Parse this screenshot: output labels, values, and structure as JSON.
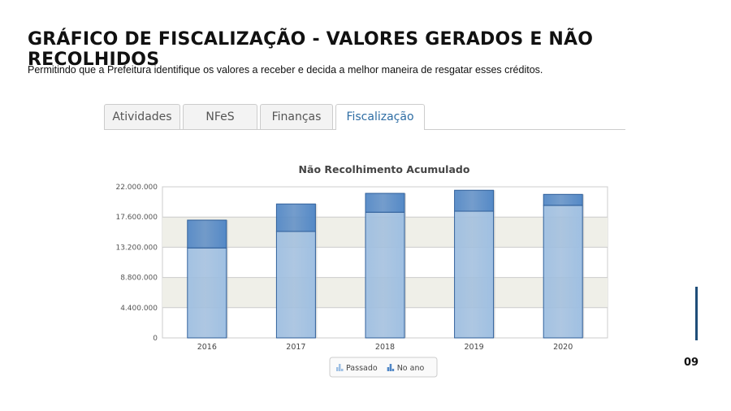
{
  "header": {
    "title": "GRÁFICO DE FISCALIZAÇÃO - VALORES GERADOS E NÃO RECOLHIDOS",
    "subtitle": "Permitindo que a Prefeitura identifique os valores a receber e decida a melhor maneira de resgatar esses créditos."
  },
  "tabs": [
    "Atividades",
    "NFeS",
    "Finanças",
    "Fiscalização"
  ],
  "page_number": "09",
  "chart_data": {
    "type": "stacked-bar",
    "title": "Não Recolhimento Acumulado",
    "categories": [
      "2016",
      "2017",
      "2018",
      "2019",
      "2020"
    ],
    "series": [
      {
        "name": "Passado",
        "color": "#9dbfe3",
        "values": [
          13100000,
          15500000,
          18300000,
          18450000,
          19300000
        ]
      },
      {
        "name": "No ano",
        "color": "#4f86c6",
        "values": [
          4050000,
          4000000,
          2750000,
          3050000,
          1600000
        ]
      }
    ],
    "ylim": [
      0,
      22000000
    ],
    "yticks": [
      0,
      {
        "value": 4400000,
        "label": "4.400.000"
      },
      {
        "value": 8800000,
        "label": "8.800.000"
      },
      {
        "value": 13200000,
        "label": "13.200.000"
      },
      {
        "value": 17600000,
        "label": "17.600.000"
      },
      {
        "value": 22000000,
        "label": "22.000.000"
      }
    ],
    "grid": true,
    "legend": "bottom"
  }
}
